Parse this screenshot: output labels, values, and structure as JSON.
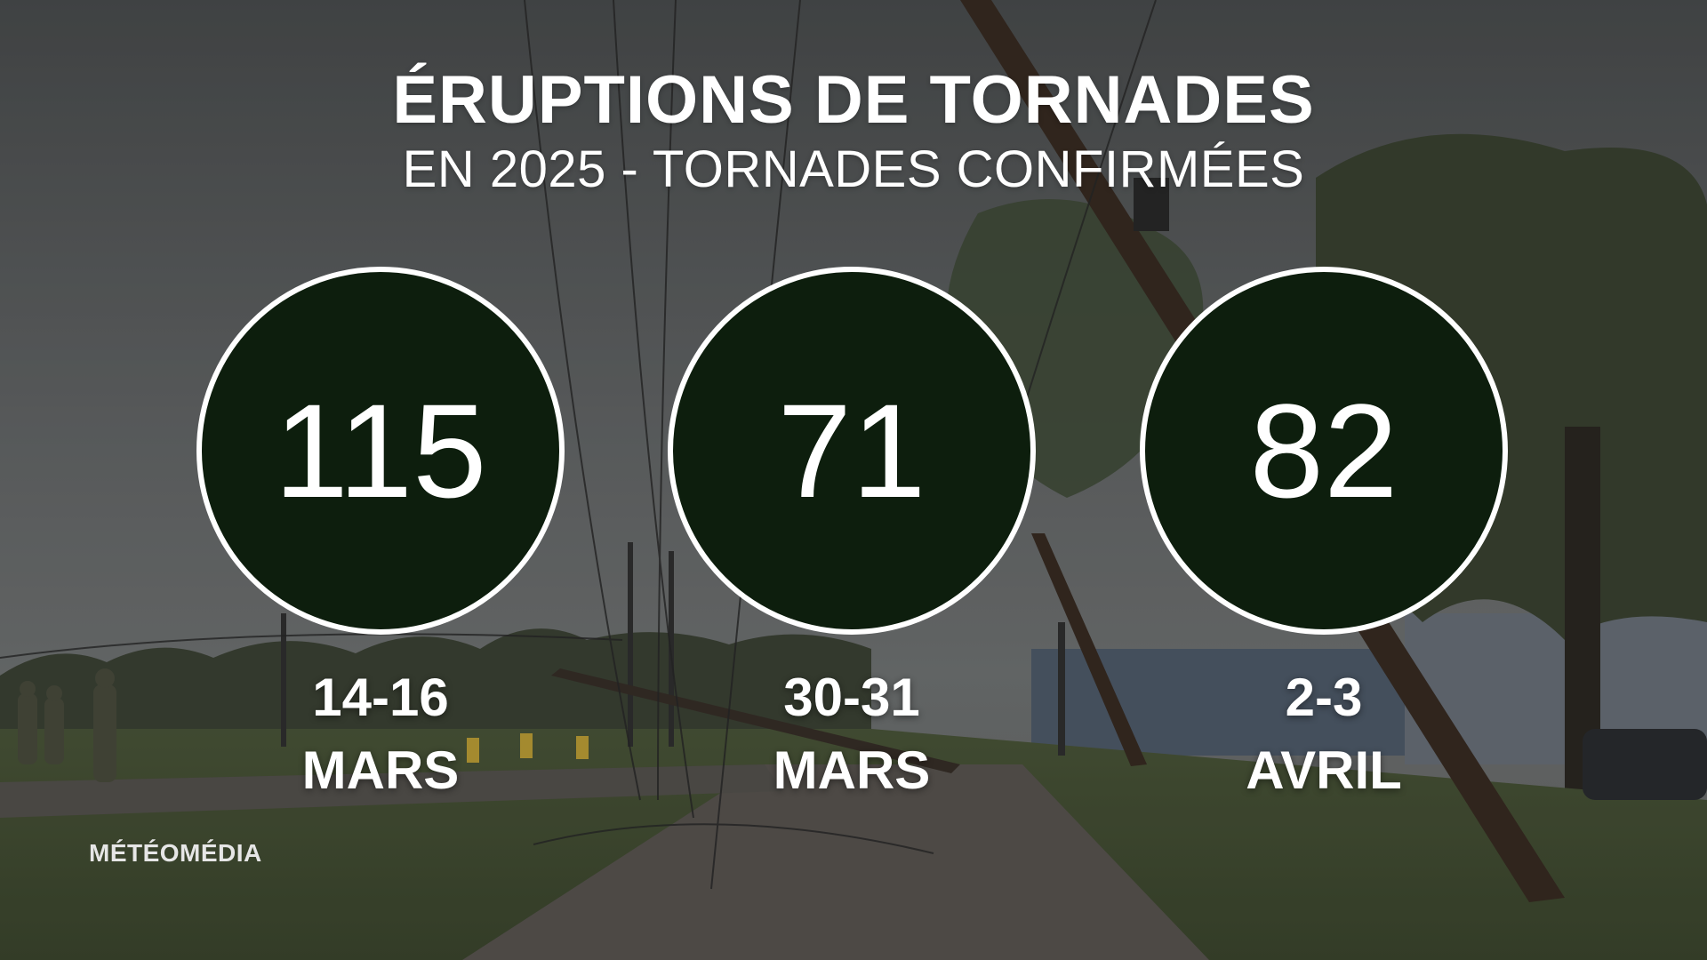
{
  "title": {
    "main": "ÉRUPTIONS DE TORNADES",
    "sub": "EN 2025 - TORNADES CONFIRMÉES"
  },
  "stats": [
    {
      "value": "115",
      "dates": "14-16",
      "month": "MARS"
    },
    {
      "value": "71",
      "dates": "30-31",
      "month": "MARS"
    },
    {
      "value": "82",
      "dates": "2-3",
      "month": "AVRIL"
    }
  ],
  "brand": "MÉTÉOMÉDIA",
  "colors": {
    "circle_fill": "#0d1e0d",
    "circle_border": "#ffffff",
    "text": "#ffffff"
  }
}
